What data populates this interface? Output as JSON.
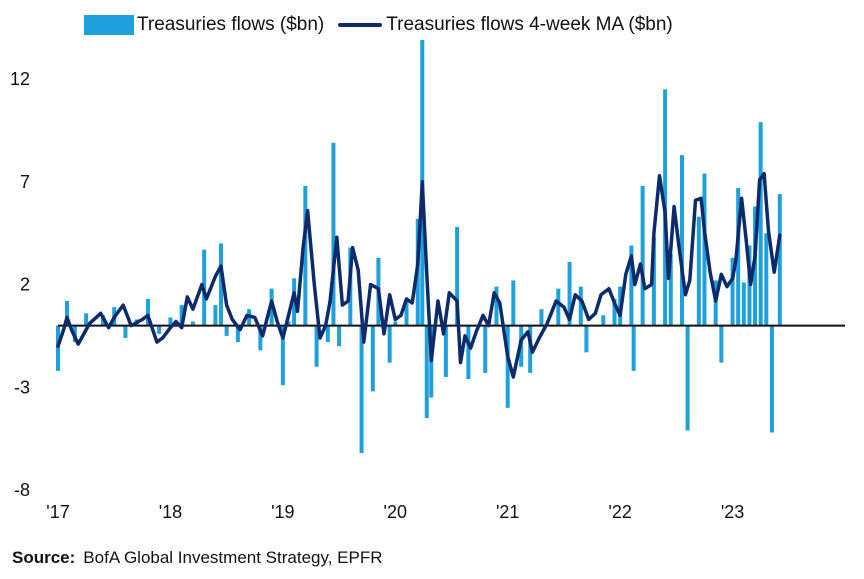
{
  "chart_data": {
    "type": "bar",
    "title": "",
    "xlabel": "",
    "ylabel": "",
    "ylim": [
      -8,
      14
    ],
    "y_ticks": [
      "12",
      "7",
      "2",
      "-3",
      "-8"
    ],
    "y_tick_values": [
      12,
      7,
      2,
      -3,
      -8
    ],
    "x_ticks": [
      "'17",
      "'18",
      "'19",
      "'20",
      "'21",
      "'22",
      "'23"
    ],
    "x_tick_values": [
      2017,
      2018,
      2019,
      2020,
      2021,
      2022,
      2023
    ],
    "xlim": [
      2017.0,
      2024.0
    ],
    "legend_position": "top",
    "grid": false,
    "series": [
      {
        "name": "Treasuries flows ($bn)",
        "type": "bar",
        "color": "#1ea0dc",
        "points": [
          [
            2017.0,
            -2.2
          ],
          [
            2017.08,
            1.2
          ],
          [
            2017.15,
            -0.8
          ],
          [
            2017.25,
            0.6
          ],
          [
            2017.4,
            0.5
          ],
          [
            2017.5,
            0.9
          ],
          [
            2017.6,
            -0.6
          ],
          [
            2017.7,
            0.3
          ],
          [
            2017.8,
            1.3
          ],
          [
            2017.9,
            -0.4
          ],
          [
            2018.0,
            0.4
          ],
          [
            2018.1,
            1.0
          ],
          [
            2018.2,
            0.2
          ],
          [
            2018.3,
            3.7
          ],
          [
            2018.4,
            1.0
          ],
          [
            2018.45,
            4.0
          ],
          [
            2018.5,
            -0.5
          ],
          [
            2018.6,
            -0.8
          ],
          [
            2018.7,
            0.8
          ],
          [
            2018.8,
            -1.2
          ],
          [
            2018.9,
            1.8
          ],
          [
            2019.0,
            -2.9
          ],
          [
            2019.05,
            0.2
          ],
          [
            2019.1,
            2.3
          ],
          [
            2019.2,
            6.8
          ],
          [
            2019.3,
            -2.0
          ],
          [
            2019.4,
            -0.8
          ],
          [
            2019.45,
            8.9
          ],
          [
            2019.5,
            -1.0
          ],
          [
            2019.6,
            3.8
          ],
          [
            2019.7,
            -6.2
          ],
          [
            2019.8,
            -3.2
          ],
          [
            2019.85,
            3.3
          ],
          [
            2019.95,
            -1.8
          ],
          [
            2020.0,
            0.2
          ],
          [
            2020.1,
            1.2
          ],
          [
            2020.2,
            5.2
          ],
          [
            2020.24,
            13.9
          ],
          [
            2020.28,
            -4.5
          ],
          [
            2020.32,
            -3.5
          ],
          [
            2020.45,
            -2.5
          ],
          [
            2020.55,
            4.8
          ],
          [
            2020.65,
            -2.6
          ],
          [
            2020.8,
            -2.3
          ],
          [
            2020.9,
            1.9
          ],
          [
            2021.0,
            -4.0
          ],
          [
            2021.05,
            2.2
          ],
          [
            2021.12,
            -2.0
          ],
          [
            2021.2,
            -2.3
          ],
          [
            2021.3,
            0.8
          ],
          [
            2021.45,
            1.8
          ],
          [
            2021.55,
            3.1
          ],
          [
            2021.65,
            1.9
          ],
          [
            2021.7,
            -1.3
          ],
          [
            2021.85,
            0.5
          ],
          [
            2021.95,
            1.3
          ],
          [
            2022.0,
            1.9
          ],
          [
            2022.1,
            3.9
          ],
          [
            2022.12,
            -2.2
          ],
          [
            2022.2,
            6.8
          ],
          [
            2022.3,
            4.3
          ],
          [
            2022.4,
            11.5
          ],
          [
            2022.45,
            3.5
          ],
          [
            2022.55,
            8.3
          ],
          [
            2022.6,
            -5.1
          ],
          [
            2022.7,
            5.3
          ],
          [
            2022.75,
            7.4
          ],
          [
            2022.85,
            2.2
          ],
          [
            2022.9,
            -1.8
          ],
          [
            2023.0,
            3.3
          ],
          [
            2023.05,
            6.7
          ],
          [
            2023.1,
            2.1
          ],
          [
            2023.15,
            3.9
          ],
          [
            2023.2,
            5.8
          ],
          [
            2023.25,
            9.9
          ],
          [
            2023.3,
            4.5
          ],
          [
            2023.35,
            -5.2
          ],
          [
            2023.42,
            6.4
          ]
        ]
      },
      {
        "name": "Treasuries flows 4-week MA ($bn)",
        "type": "line",
        "color": "#0d2a6b",
        "points": [
          [
            2017.0,
            -1.0
          ],
          [
            2017.05,
            -0.2
          ],
          [
            2017.08,
            0.4
          ],
          [
            2017.12,
            -0.2
          ],
          [
            2017.18,
            -0.9
          ],
          [
            2017.28,
            0.1
          ],
          [
            2017.38,
            0.6
          ],
          [
            2017.45,
            -0.1
          ],
          [
            2017.5,
            0.4
          ],
          [
            2017.58,
            1.0
          ],
          [
            2017.65,
            0.0
          ],
          [
            2017.75,
            0.3
          ],
          [
            2017.8,
            0.5
          ],
          [
            2017.88,
            -0.8
          ],
          [
            2017.93,
            -0.6
          ],
          [
            2018.0,
            -0.1
          ],
          [
            2018.05,
            0.2
          ],
          [
            2018.1,
            -0.1
          ],
          [
            2018.15,
            1.4
          ],
          [
            2018.2,
            0.8
          ],
          [
            2018.28,
            2.0
          ],
          [
            2018.32,
            1.3
          ],
          [
            2018.4,
            2.4
          ],
          [
            2018.45,
            2.9
          ],
          [
            2018.5,
            1.0
          ],
          [
            2018.55,
            0.3
          ],
          [
            2018.62,
            -0.2
          ],
          [
            2018.68,
            0.5
          ],
          [
            2018.75,
            0.4
          ],
          [
            2018.82,
            -0.5
          ],
          [
            2018.9,
            1.2
          ],
          [
            2018.95,
            0.2
          ],
          [
            2019.0,
            -0.6
          ],
          [
            2019.05,
            0.5
          ],
          [
            2019.1,
            1.6
          ],
          [
            2019.13,
            0.7
          ],
          [
            2019.18,
            3.8
          ],
          [
            2019.22,
            5.6
          ],
          [
            2019.28,
            2.0
          ],
          [
            2019.33,
            -0.6
          ],
          [
            2019.38,
            0.0
          ],
          [
            2019.42,
            1.2
          ],
          [
            2019.48,
            4.3
          ],
          [
            2019.53,
            1.0
          ],
          [
            2019.58,
            1.2
          ],
          [
            2019.62,
            3.8
          ],
          [
            2019.67,
            2.7
          ],
          [
            2019.72,
            -0.8
          ],
          [
            2019.78,
            2.0
          ],
          [
            2019.85,
            1.8
          ],
          [
            2019.9,
            -0.4
          ],
          [
            2019.95,
            1.5
          ],
          [
            2020.0,
            0.3
          ],
          [
            2020.05,
            0.5
          ],
          [
            2020.1,
            1.3
          ],
          [
            2020.15,
            1.1
          ],
          [
            2020.2,
            3.0
          ],
          [
            2020.24,
            7.0
          ],
          [
            2020.28,
            2.5
          ],
          [
            2020.32,
            -1.7
          ],
          [
            2020.38,
            1.2
          ],
          [
            2020.43,
            -0.4
          ],
          [
            2020.48,
            1.6
          ],
          [
            2020.55,
            1.2
          ],
          [
            2020.58,
            -1.8
          ],
          [
            2020.62,
            -0.5
          ],
          [
            2020.67,
            -1.1
          ],
          [
            2020.72,
            -0.3
          ],
          [
            2020.78,
            0.5
          ],
          [
            2020.83,
            0.0
          ],
          [
            2020.88,
            1.6
          ],
          [
            2020.93,
            1.1
          ],
          [
            2021.0,
            -1.5
          ],
          [
            2021.05,
            -2.5
          ],
          [
            2021.12,
            -0.7
          ],
          [
            2021.18,
            -0.3
          ],
          [
            2021.22,
            -1.3
          ],
          [
            2021.28,
            -0.6
          ],
          [
            2021.35,
            0.1
          ],
          [
            2021.43,
            1.2
          ],
          [
            2021.5,
            0.9
          ],
          [
            2021.55,
            0.3
          ],
          [
            2021.6,
            1.5
          ],
          [
            2021.66,
            1.2
          ],
          [
            2021.72,
            0.3
          ],
          [
            2021.78,
            0.6
          ],
          [
            2021.83,
            1.5
          ],
          [
            2021.9,
            1.8
          ],
          [
            2021.95,
            1.1
          ],
          [
            2022.0,
            0.5
          ],
          [
            2022.05,
            2.5
          ],
          [
            2022.1,
            3.4
          ],
          [
            2022.13,
            2.0
          ],
          [
            2022.18,
            3.0
          ],
          [
            2022.22,
            1.8
          ],
          [
            2022.28,
            2.0
          ],
          [
            2022.3,
            4.5
          ],
          [
            2022.35,
            7.3
          ],
          [
            2022.4,
            5.5
          ],
          [
            2022.43,
            2.3
          ],
          [
            2022.48,
            5.8
          ],
          [
            2022.52,
            4.0
          ],
          [
            2022.58,
            1.5
          ],
          [
            2022.62,
            2.2
          ],
          [
            2022.67,
            6.1
          ],
          [
            2022.72,
            6.2
          ],
          [
            2022.75,
            4.6
          ],
          [
            2022.8,
            2.6
          ],
          [
            2022.85,
            1.2
          ],
          [
            2022.9,
            2.5
          ],
          [
            2022.95,
            1.9
          ],
          [
            2023.0,
            2.3
          ],
          [
            2023.03,
            3.2
          ],
          [
            2023.08,
            6.2
          ],
          [
            2023.12,
            4.2
          ],
          [
            2023.16,
            2.0
          ],
          [
            2023.2,
            3.4
          ],
          [
            2023.24,
            7.1
          ],
          [
            2023.28,
            7.4
          ],
          [
            2023.32,
            4.6
          ],
          [
            2023.37,
            2.6
          ],
          [
            2023.42,
            4.4
          ]
        ]
      }
    ]
  },
  "source": {
    "label": "Source:",
    "text": "BofA Global Investment Strategy, EPFR"
  }
}
